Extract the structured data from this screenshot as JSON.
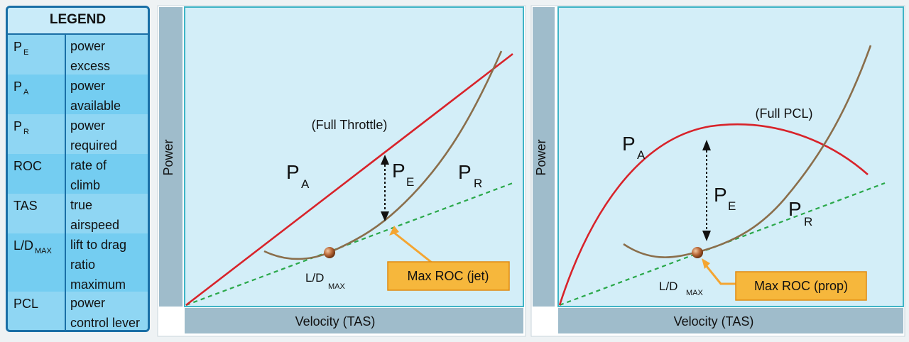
{
  "legend": {
    "title": "LEGEND",
    "rows": [
      {
        "sym_main": "P",
        "sym_sub": "E",
        "desc1": "power",
        "desc2": "excess"
      },
      {
        "sym_main": "P",
        "sym_sub": "A",
        "desc1": "power",
        "desc2": "available"
      },
      {
        "sym_main": "P",
        "sym_sub": "R",
        "desc1": "power",
        "desc2": "required"
      },
      {
        "sym_main": "ROC",
        "sym_sub": "",
        "desc1": "rate of",
        "desc2": "climb"
      },
      {
        "sym_main": "TAS",
        "sym_sub": "",
        "desc1": "true",
        "desc2": "airspeed"
      },
      {
        "sym_main": "L/D",
        "sym_sub": "MAX",
        "desc1": "lift to drag",
        "desc2": "ratio",
        "desc3": "maximum"
      },
      {
        "sym_main": "PCL",
        "sym_sub": "",
        "desc1": "power",
        "desc2": "control lever"
      }
    ]
  },
  "jet": {
    "y_axis": "Power",
    "x_axis": "Velocity (TAS)",
    "throttle_note": "(Full Throttle)",
    "pa_main": "P",
    "pa_sub": "A",
    "pe_main": "P",
    "pe_sub": "E",
    "pr_main": "P",
    "pr_sub": "R",
    "ld_main": "L/D",
    "ld_sub": "MAX",
    "callout": "Max ROC (jet)"
  },
  "prop": {
    "y_axis": "Power",
    "x_axis": "Velocity (TAS)",
    "throttle_note": "(Full PCL)",
    "pa_main": "P",
    "pa_sub": "A",
    "pe_main": "P",
    "pe_sub": "E",
    "pr_main": "P",
    "pr_sub": "R",
    "ld_main": "L/D",
    "ld_sub": "MAX",
    "callout": "Max ROC (prop)"
  },
  "colors": {
    "panel_fill": "#d3eef8",
    "panel_border": "#3fb4c6",
    "axis_bar": "#9fbccb",
    "power_available": "#d8232a",
    "power_required": "#8a6e4b",
    "tangent": "#2aa84a",
    "callout_fill": "#f6b73c",
    "callout_border": "#e08a12",
    "callout_arrow": "#f4a531"
  }
}
